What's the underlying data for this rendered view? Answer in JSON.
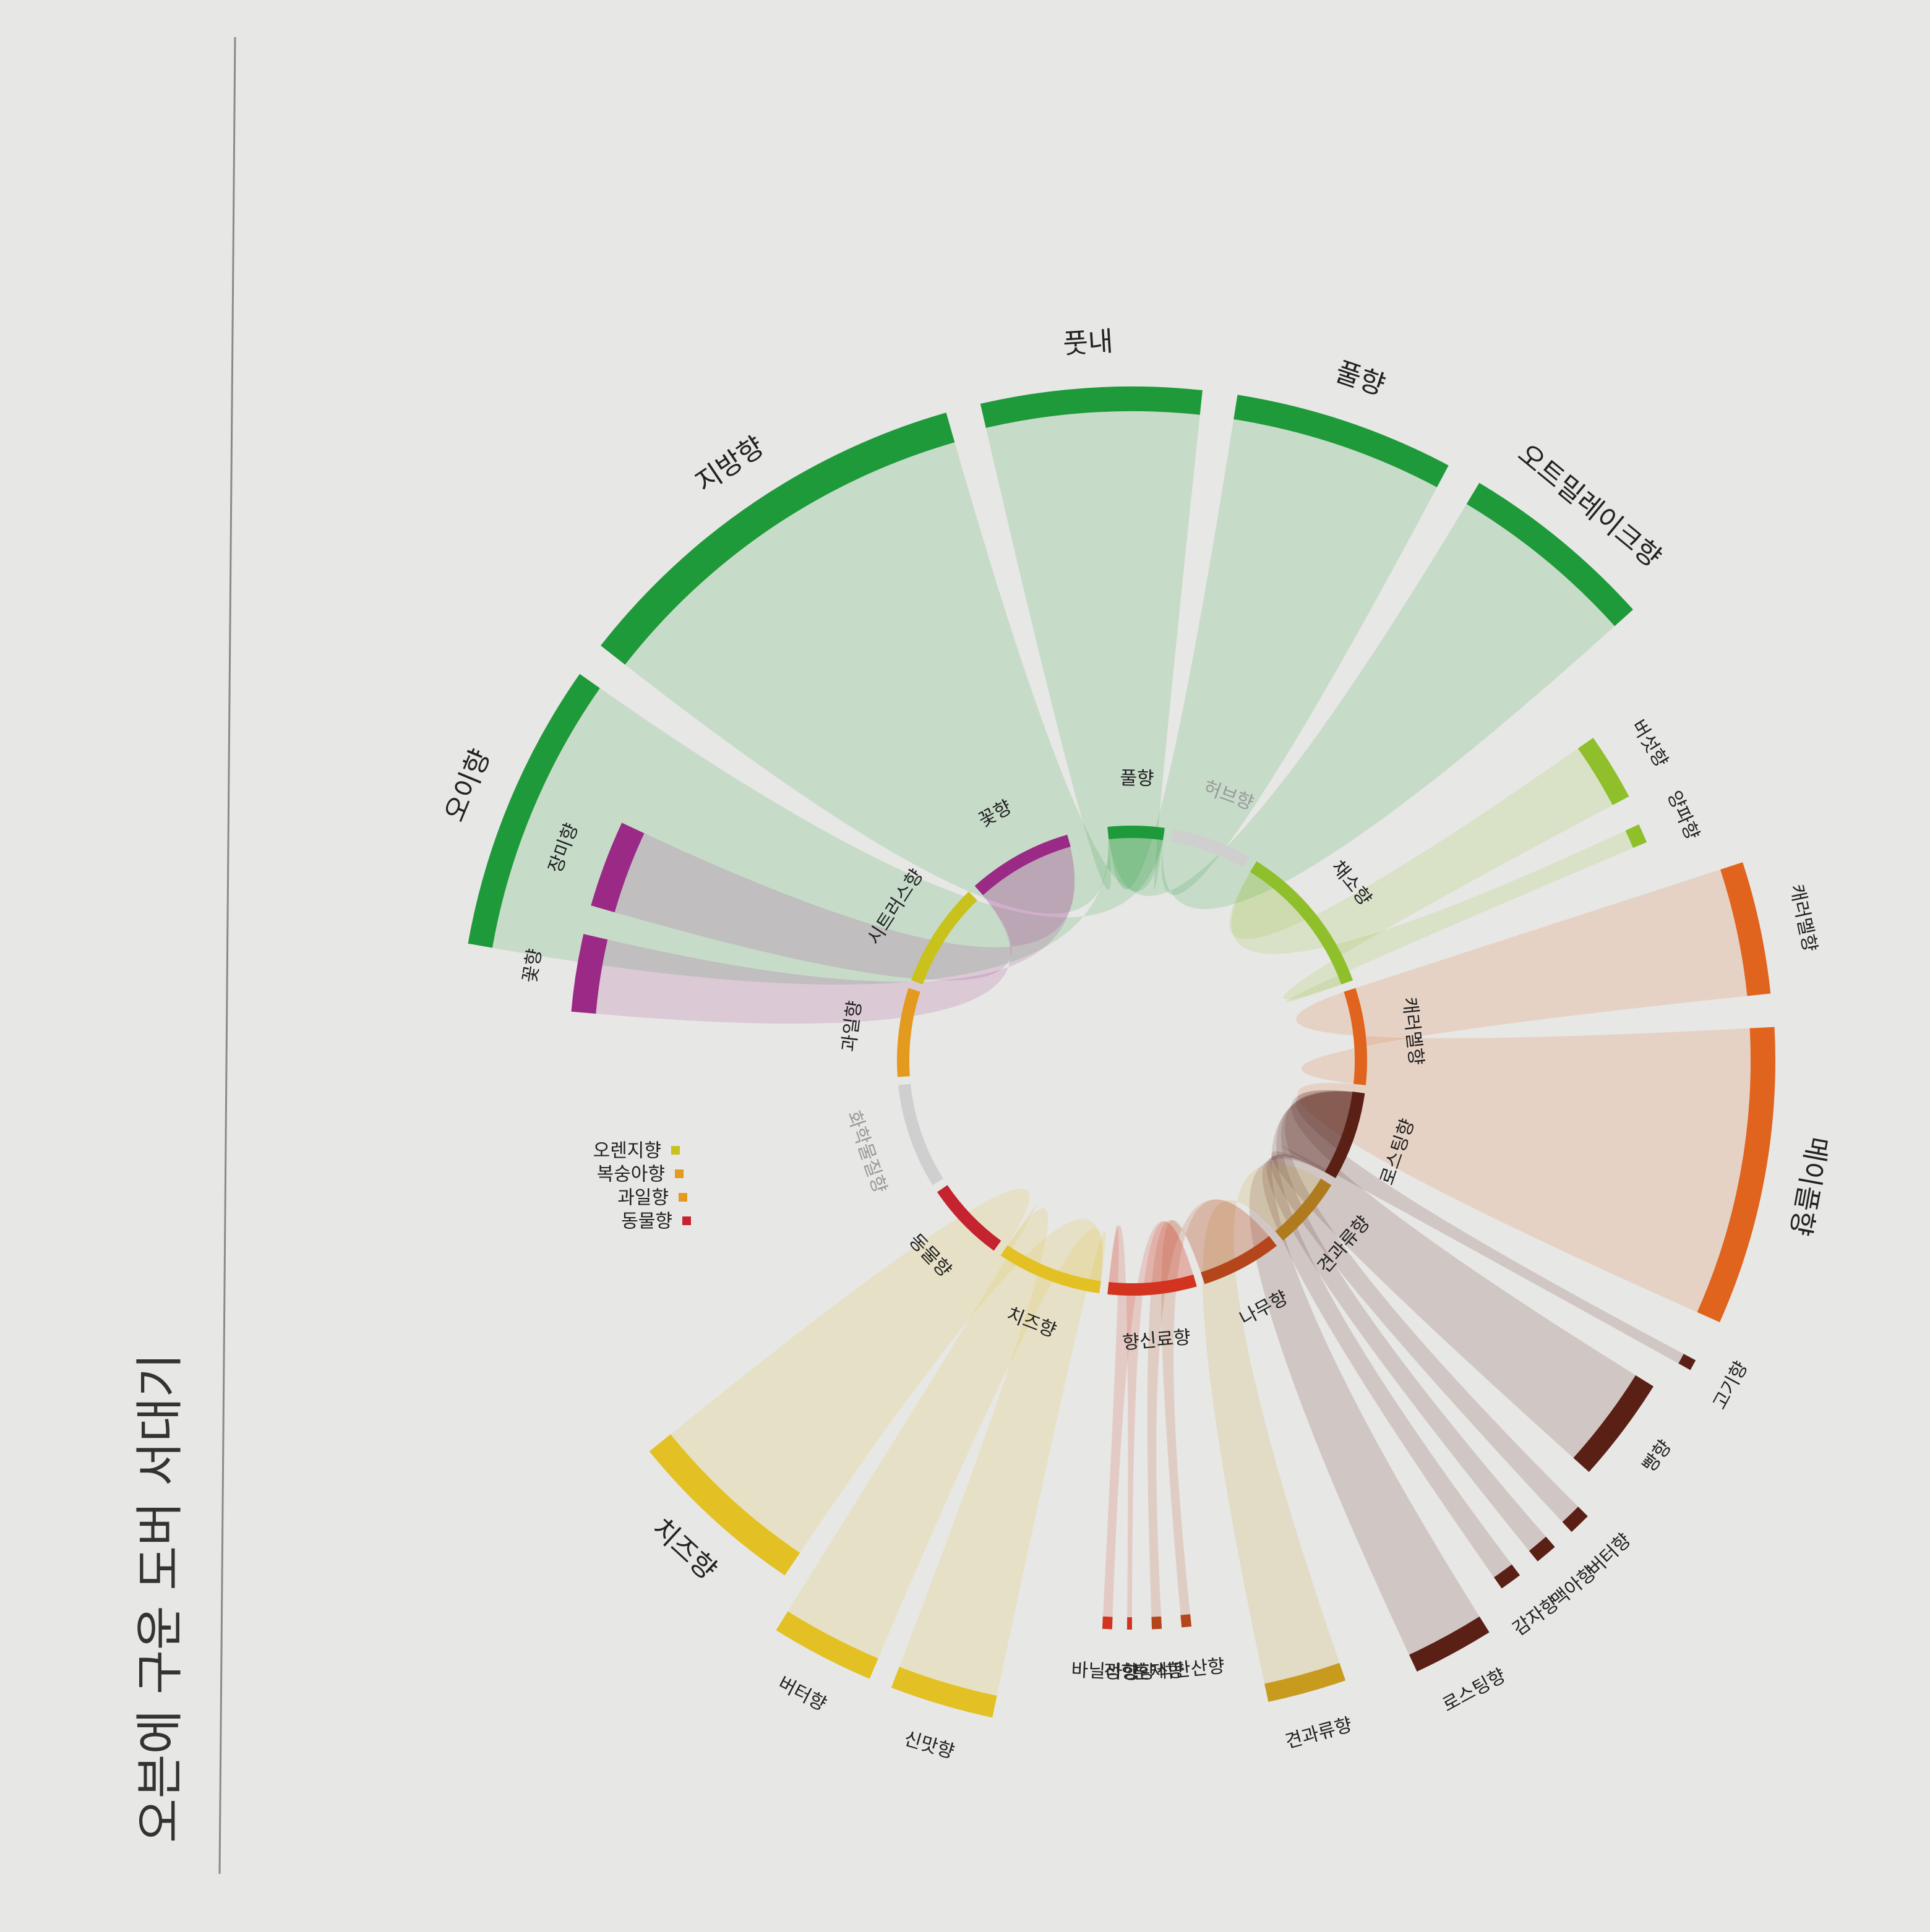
{
  "title": "오븐에 구운 도버 서대기",
  "colors": {
    "green": "#1f9a3a",
    "lightgreen": "#8fbf2a",
    "purple": "#9a2a86",
    "orange": "#e0641e",
    "brown": "#5a2016",
    "yellow": "#e3c124",
    "gold": "#c89a1e",
    "red": "#d23420",
    "grey": "#cfcfcf"
  },
  "inner_ring": [
    {
      "id": "grass",
      "label": "풀향",
      "color": "#1f9a3a"
    },
    {
      "id": "herb",
      "label": "허브향",
      "color": "#cfcfcf"
    },
    {
      "id": "vegetable",
      "label": "채소향",
      "color": "#8fbf2a"
    },
    {
      "id": "caramel_inner",
      "label": "캐러멜향",
      "color": "#e0641e"
    },
    {
      "id": "roast",
      "label": "로스팅향",
      "color": "#5a2016"
    },
    {
      "id": "nut",
      "label": "견과류향",
      "color": "#b07a1e"
    },
    {
      "id": "wood",
      "label": "나무향",
      "color": "#b5451b"
    },
    {
      "id": "spice",
      "label": "향신료향",
      "color": "#d23420"
    },
    {
      "id": "cheese_inner",
      "label": "치즈향",
      "color": "#e3c124"
    },
    {
      "id": "animal",
      "label": "동물향",
      "color": "#c4232f"
    },
    {
      "id": "chemical",
      "label": "화학물질향",
      "color": "#cfcfcf"
    },
    {
      "id": "fruit",
      "label": "과일향",
      "color": "#e39a1e"
    },
    {
      "id": "citrus",
      "label": "시트러스향",
      "color": "#c9c21c"
    },
    {
      "id": "flower",
      "label": "꽃향",
      "color": "#9a2a86"
    }
  ],
  "outer_arcs": [
    {
      "label": "오이향",
      "color": "#1f9a3a",
      "group": "grass"
    },
    {
      "label": "지방향",
      "color": "#1f9a3a",
      "group": "grass"
    },
    {
      "label": "풋내",
      "color": "#1f9a3a",
      "group": "grass"
    },
    {
      "label": "풀향",
      "color": "#1f9a3a",
      "group": "grass"
    },
    {
      "label": "오트밀레이크향",
      "color": "#1f9a3a",
      "group": "grass"
    },
    {
      "label": "버섯향",
      "color": "#8fbf2a",
      "group": "vegetable"
    },
    {
      "label": "양파향",
      "color": "#8fbf2a",
      "group": "vegetable"
    },
    {
      "label": "캐러멜향",
      "color": "#e0641e",
      "group": "caramel_inner"
    },
    {
      "label": "메이플향",
      "color": "#e0641e",
      "group": "caramel_inner"
    },
    {
      "label": "고기향",
      "color": "#5a2016",
      "group": "roast"
    },
    {
      "label": "빵향",
      "color": "#5a2016",
      "group": "roast"
    },
    {
      "label": "버터향",
      "color": "#5a2016",
      "group": "roast"
    },
    {
      "label": "맥아향",
      "color": "#5a2016",
      "group": "roast"
    },
    {
      "label": "감자향",
      "color": "#5a2016",
      "group": "roast"
    },
    {
      "label": "로스팅향",
      "color": "#5a2016",
      "group": "roast"
    },
    {
      "label": "견과류향",
      "color": "#c89a1e",
      "group": "nut"
    },
    {
      "label": "석탄산향",
      "color": "#b5451b",
      "group": "wood"
    },
    {
      "label": "훈제향",
      "color": "#b5451b",
      "group": "wood"
    },
    {
      "label": "정향향",
      "color": "#d23420",
      "group": "spice"
    },
    {
      "label": "바닐라향",
      "color": "#d23420",
      "group": "spice"
    },
    {
      "label": "신맛향",
      "color": "#e3c124",
      "group": "cheese_inner"
    },
    {
      "label": "버터향",
      "color": "#e3c124",
      "group": "cheese_inner"
    },
    {
      "label": "치즈향",
      "color": "#e3c124",
      "group": "cheese_inner"
    },
    {
      "label": "꽃향",
      "color": "#9a2a86",
      "group": "flower"
    },
    {
      "label": "장미향",
      "color": "#9a2a86",
      "group": "flower"
    }
  ],
  "small_legend": [
    {
      "label": "오렌지향",
      "color": "#c9c21c"
    },
    {
      "label": "복숭아향",
      "color": "#e39a1e"
    },
    {
      "label": "과일향",
      "color": "#e39a1e"
    },
    {
      "label": "동물향",
      "color": "#c4232f"
    }
  ]
}
